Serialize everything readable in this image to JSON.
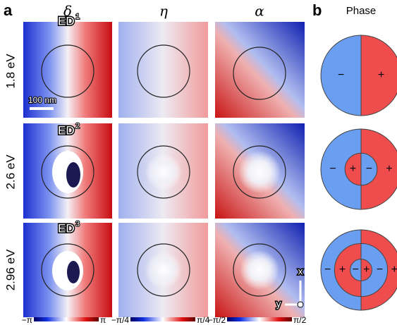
{
  "panel_a": {
    "label": "a",
    "columns": [
      "δ",
      "η",
      "α"
    ],
    "rows": [
      {
        "energy": "1.8 eV",
        "mode": "ED",
        "order": "1"
      },
      {
        "energy": "2.6 eV",
        "mode": "ED",
        "order": "2"
      },
      {
        "energy": "2.96 eV",
        "mode": "ED",
        "order": "3"
      }
    ],
    "scale_bar": "100 nm",
    "colorbars": [
      {
        "min": "−π",
        "max": "π"
      },
      {
        "min": "−π/4",
        "max": "π/4"
      },
      {
        "min": "−π/2",
        "max": "π/2"
      }
    ],
    "axes": {
      "x": "x",
      "y": "y"
    }
  },
  "panel_b": {
    "label": "b",
    "title": "Phase",
    "diagrams": [
      {
        "signs": [
          "−",
          "+"
        ]
      },
      {
        "signs": [
          "−",
          "+",
          "−",
          "+"
        ]
      },
      {
        "signs": [
          "−",
          "+",
          "−",
          "+",
          "−",
          "+"
        ]
      }
    ]
  }
}
